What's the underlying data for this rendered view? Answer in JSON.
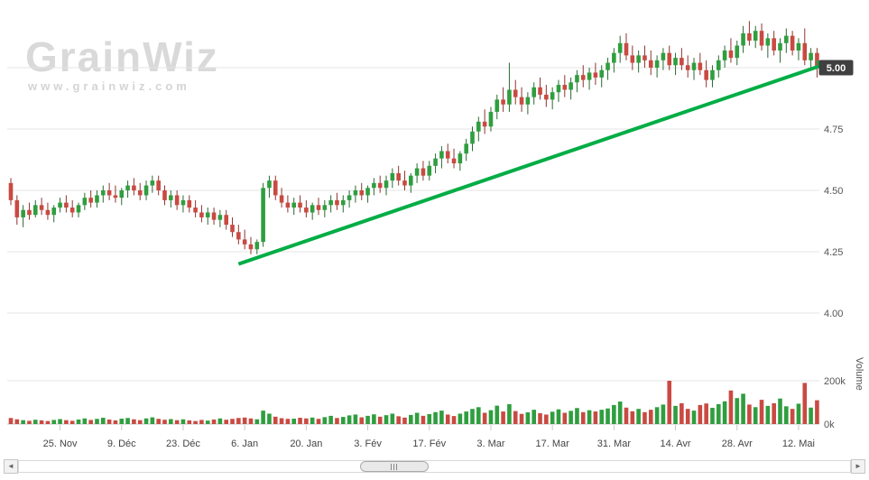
{
  "brand": {
    "logo_text": "GrainWiz",
    "url_text": "www.grainwiz.com"
  },
  "scrollbar": {
    "left_arrow": "◄",
    "right_arrow": "►"
  },
  "chart_data": {
    "type": "candlestick",
    "title": "",
    "legend": "off",
    "grid": "on",
    "panes": [
      {
        "name": "price",
        "ylabel": "",
        "ytick_labels": [
          "4.00",
          "4.25",
          "4.50",
          "4.75",
          "5.00"
        ],
        "ytick_values": [
          4.0,
          4.25,
          4.5,
          4.75,
          5.0
        ],
        "ylim": [
          3.95,
          5.24
        ]
      },
      {
        "name": "volume",
        "ylabel": "Volume",
        "ytick_labels": [
          "0k",
          "200k"
        ],
        "ytick_values": [
          0,
          200
        ],
        "ylim": [
          0,
          210
        ]
      }
    ],
    "x_ticks": [
      {
        "index": 8,
        "label": "25. Nov"
      },
      {
        "index": 18,
        "label": "9. Déc"
      },
      {
        "index": 28,
        "label": "23. Déc"
      },
      {
        "index": 38,
        "label": "6. Jan"
      },
      {
        "index": 48,
        "label": "20. Jan"
      },
      {
        "index": 58,
        "label": "3. Fév"
      },
      {
        "index": 68,
        "label": "17. Fév"
      },
      {
        "index": 78,
        "label": "3. Mar"
      },
      {
        "index": 88,
        "label": "17. Mar"
      },
      {
        "index": 98,
        "label": "31. Mar"
      },
      {
        "index": 108,
        "label": "14. Avr"
      },
      {
        "index": 118,
        "label": "28. Avr"
      },
      {
        "index": 128,
        "label": "12. Mai"
      }
    ],
    "last_price": {
      "label": "5.00",
      "value": 5.0
    },
    "trend_line": {
      "from_index": 37,
      "from_price": 4.2,
      "to_index": 133,
      "to_price": 5.02
    },
    "candles_ohlc": [
      [
        4.53,
        4.55,
        4.44,
        4.46
      ],
      [
        4.46,
        4.48,
        4.36,
        4.39
      ],
      [
        4.39,
        4.44,
        4.35,
        4.42
      ],
      [
        4.42,
        4.45,
        4.38,
        4.4
      ],
      [
        4.4,
        4.46,
        4.39,
        4.44
      ],
      [
        4.44,
        4.47,
        4.4,
        4.42
      ],
      [
        4.42,
        4.45,
        4.38,
        4.4
      ],
      [
        4.4,
        4.44,
        4.37,
        4.43
      ],
      [
        4.43,
        4.47,
        4.41,
        4.45
      ],
      [
        4.45,
        4.48,
        4.41,
        4.43
      ],
      [
        4.43,
        4.46,
        4.39,
        4.41
      ],
      [
        4.41,
        4.45,
        4.39,
        4.44
      ],
      [
        4.44,
        4.49,
        4.42,
        4.47
      ],
      [
        4.47,
        4.5,
        4.43,
        4.45
      ],
      [
        4.45,
        4.5,
        4.43,
        4.48
      ],
      [
        4.48,
        4.52,
        4.45,
        4.5
      ],
      [
        4.5,
        4.53,
        4.46,
        4.48
      ],
      [
        4.48,
        4.52,
        4.45,
        4.47
      ],
      [
        4.47,
        4.51,
        4.44,
        4.5
      ],
      [
        4.5,
        4.54,
        4.47,
        4.52
      ],
      [
        4.52,
        4.55,
        4.48,
        4.5
      ],
      [
        4.5,
        4.53,
        4.46,
        4.48
      ],
      [
        4.48,
        4.54,
        4.46,
        4.52
      ],
      [
        4.52,
        4.56,
        4.49,
        4.54
      ],
      [
        4.54,
        4.56,
        4.48,
        4.5
      ],
      [
        4.5,
        4.52,
        4.44,
        4.46
      ],
      [
        4.46,
        4.5,
        4.43,
        4.48
      ],
      [
        4.48,
        4.5,
        4.42,
        4.44
      ],
      [
        4.44,
        4.48,
        4.41,
        4.46
      ],
      [
        4.46,
        4.48,
        4.41,
        4.43
      ],
      [
        4.43,
        4.46,
        4.39,
        4.41
      ],
      [
        4.41,
        4.44,
        4.37,
        4.39
      ],
      [
        4.39,
        4.43,
        4.36,
        4.41
      ],
      [
        4.41,
        4.43,
        4.36,
        4.38
      ],
      [
        4.38,
        4.42,
        4.35,
        4.4
      ],
      [
        4.4,
        4.42,
        4.34,
        4.36
      ],
      [
        4.36,
        4.39,
        4.31,
        4.33
      ],
      [
        4.33,
        4.36,
        4.28,
        4.3
      ],
      [
        4.3,
        4.34,
        4.26,
        4.28
      ],
      [
        4.28,
        4.31,
        4.24,
        4.26
      ],
      [
        4.26,
        4.3,
        4.24,
        4.29
      ],
      [
        4.29,
        4.53,
        4.27,
        4.51
      ],
      [
        4.51,
        4.56,
        4.47,
        4.54
      ],
      [
        4.54,
        4.56,
        4.46,
        4.48
      ],
      [
        4.48,
        4.51,
        4.43,
        4.45
      ],
      [
        4.45,
        4.48,
        4.41,
        4.43
      ],
      [
        4.43,
        4.47,
        4.4,
        4.45
      ],
      [
        4.45,
        4.48,
        4.41,
        4.43
      ],
      [
        4.43,
        4.46,
        4.39,
        4.41
      ],
      [
        4.41,
        4.45,
        4.38,
        4.44
      ],
      [
        4.44,
        4.47,
        4.4,
        4.42
      ],
      [
        4.42,
        4.46,
        4.39,
        4.44
      ],
      [
        4.44,
        4.48,
        4.41,
        4.46
      ],
      [
        4.46,
        4.49,
        4.42,
        4.44
      ],
      [
        4.44,
        4.48,
        4.41,
        4.46
      ],
      [
        4.46,
        4.5,
        4.43,
        4.48
      ],
      [
        4.48,
        4.52,
        4.45,
        4.5
      ],
      [
        4.5,
        4.53,
        4.46,
        4.48
      ],
      [
        4.48,
        4.52,
        4.45,
        4.51
      ],
      [
        4.51,
        4.55,
        4.48,
        4.53
      ],
      [
        4.53,
        4.56,
        4.49,
        4.51
      ],
      [
        4.51,
        4.56,
        4.48,
        4.54
      ],
      [
        4.54,
        4.59,
        4.51,
        4.57
      ],
      [
        4.57,
        4.6,
        4.52,
        4.54
      ],
      [
        4.54,
        4.58,
        4.5,
        4.52
      ],
      [
        4.52,
        4.57,
        4.49,
        4.56
      ],
      [
        4.56,
        4.61,
        4.53,
        4.59
      ],
      [
        4.59,
        4.62,
        4.54,
        4.56
      ],
      [
        4.56,
        4.62,
        4.54,
        4.6
      ],
      [
        4.6,
        4.65,
        4.57,
        4.63
      ],
      [
        4.63,
        4.68,
        4.59,
        4.66
      ],
      [
        4.66,
        4.69,
        4.61,
        4.63
      ],
      [
        4.63,
        4.67,
        4.59,
        4.61
      ],
      [
        4.61,
        4.66,
        4.58,
        4.65
      ],
      [
        4.65,
        4.71,
        4.62,
        4.69
      ],
      [
        4.69,
        4.76,
        4.66,
        4.74
      ],
      [
        4.74,
        4.8,
        4.7,
        4.78
      ],
      [
        4.78,
        4.83,
        4.73,
        4.76
      ],
      [
        4.76,
        4.84,
        4.74,
        4.82
      ],
      [
        4.82,
        4.89,
        4.79,
        4.87
      ],
      [
        4.87,
        4.92,
        4.82,
        4.85
      ],
      [
        4.85,
        5.02,
        4.82,
        4.91
      ],
      [
        4.91,
        4.95,
        4.85,
        4.88
      ],
      [
        4.88,
        4.92,
        4.82,
        4.85
      ],
      [
        4.85,
        4.9,
        4.81,
        4.88
      ],
      [
        4.88,
        4.94,
        4.85,
        4.92
      ],
      [
        4.92,
        4.96,
        4.87,
        4.89
      ],
      [
        4.89,
        4.93,
        4.84,
        4.87
      ],
      [
        4.87,
        4.92,
        4.83,
        4.9
      ],
      [
        4.9,
        4.95,
        4.86,
        4.93
      ],
      [
        4.93,
        4.97,
        4.88,
        4.91
      ],
      [
        4.91,
        4.96,
        4.87,
        4.94
      ],
      [
        4.94,
        4.99,
        4.9,
        4.97
      ],
      [
        4.97,
        5.01,
        4.92,
        4.95
      ],
      [
        4.95,
        5.0,
        4.91,
        4.98
      ],
      [
        4.98,
        5.02,
        4.93,
        4.96
      ],
      [
        4.96,
        5.01,
        4.92,
        4.99
      ],
      [
        4.99,
        5.04,
        4.95,
        5.02
      ],
      [
        5.02,
        5.08,
        4.98,
        5.06
      ],
      [
        5.06,
        5.13,
        5.02,
        5.1
      ],
      [
        5.1,
        5.14,
        5.03,
        5.05
      ],
      [
        5.05,
        5.09,
        4.99,
        5.02
      ],
      [
        5.02,
        5.07,
        4.98,
        5.05
      ],
      [
        5.05,
        5.09,
        5.0,
        5.03
      ],
      [
        5.03,
        5.07,
        4.97,
        5.0
      ],
      [
        5.0,
        5.05,
        4.96,
        5.03
      ],
      [
        5.03,
        5.08,
        4.99,
        5.06
      ],
      [
        5.06,
        5.09,
        4.99,
        5.01
      ],
      [
        5.01,
        5.06,
        4.97,
        5.04
      ],
      [
        5.04,
        5.08,
        4.99,
        5.01
      ],
      [
        5.01,
        5.05,
        4.96,
        4.99
      ],
      [
        4.99,
        5.04,
        4.95,
        5.02
      ],
      [
        5.02,
        5.06,
        4.97,
        4.99
      ],
      [
        4.99,
        5.03,
        4.92,
        4.95
      ],
      [
        4.95,
        5.01,
        4.92,
        4.99
      ],
      [
        4.99,
        5.05,
        4.96,
        5.03
      ],
      [
        5.03,
        5.09,
        5.0,
        5.07
      ],
      [
        5.07,
        5.12,
        5.02,
        5.04
      ],
      [
        5.04,
        5.11,
        5.01,
        5.09
      ],
      [
        5.09,
        5.17,
        5.06,
        5.14
      ],
      [
        5.14,
        5.19,
        5.09,
        5.11
      ],
      [
        5.11,
        5.17,
        5.08,
        5.15
      ],
      [
        5.15,
        5.18,
        5.07,
        5.09
      ],
      [
        5.09,
        5.14,
        5.04,
        5.12
      ],
      [
        5.12,
        5.15,
        5.05,
        5.07
      ],
      [
        5.07,
        5.12,
        5.02,
        5.1
      ],
      [
        5.1,
        5.16,
        5.06,
        5.13
      ],
      [
        5.13,
        5.15,
        5.05,
        5.07
      ],
      [
        5.07,
        5.12,
        5.03,
        5.1
      ],
      [
        5.1,
        5.16,
        5.01,
        5.03
      ],
      [
        5.03,
        5.08,
        4.99,
        5.06
      ],
      [
        5.06,
        5.08,
        4.96,
        5.0
      ]
    ],
    "volumes_k": [
      28,
      22,
      18,
      15,
      20,
      17,
      14,
      19,
      23,
      18,
      15,
      21,
      26,
      19,
      24,
      29,
      21,
      17,
      25,
      28,
      22,
      18,
      26,
      31,
      24,
      20,
      23,
      18,
      22,
      17,
      14,
      19,
      16,
      21,
      26,
      20,
      24,
      28,
      30,
      26,
      22,
      62,
      48,
      34,
      27,
      24,
      25,
      29,
      26,
      30,
      24,
      32,
      38,
      28,
      33,
      40,
      44,
      31,
      38,
      45,
      34,
      41,
      48,
      36,
      30,
      42,
      52,
      38,
      46,
      55,
      62,
      44,
      37,
      48,
      58,
      70,
      78,
      52,
      64,
      85,
      58,
      92,
      60,
      47,
      54,
      66,
      50,
      44,
      57,
      68,
      52,
      61,
      74,
      55,
      64,
      58,
      66,
      72,
      88,
      104,
      76,
      59,
      70,
      55,
      66,
      78,
      90,
      200,
      84,
      96,
      70,
      62,
      88,
      95,
      75,
      92,
      105,
      155,
      120,
      140,
      90,
      78,
      112,
      84,
      96,
      118,
      82,
      70,
      94,
      190,
      76,
      110
    ],
    "colors": {
      "up": "#2f9e3f",
      "down": "#c94a42",
      "up_wick": "#2a6b33",
      "down_wick": "#8e3531",
      "trend": "#00ad45",
      "grid": "#e4e4e4",
      "axis_line": "#c8c8c8",
      "axis_text": "#555555",
      "badge_bg": "#404040",
      "badge_text": "#ffffff"
    }
  }
}
